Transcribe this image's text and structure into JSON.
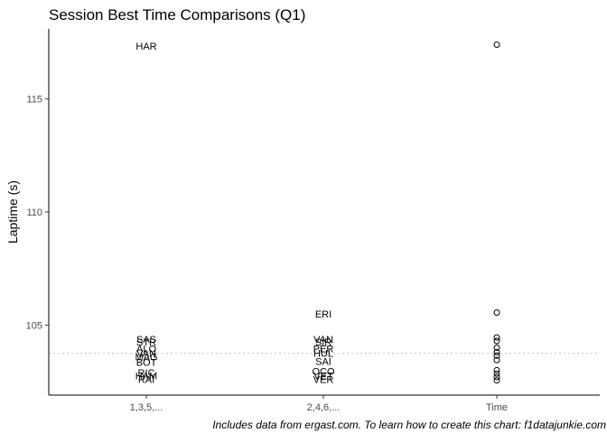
{
  "chart_data": {
    "type": "scatter",
    "title": "Session Best Time Comparisons (Q1)",
    "ylabel": "Laptime (s)",
    "caption": "Includes data from ergast.com. To learn how to create this chart: f1datajunkie.com",
    "categories": [
      "1,3,5,...",
      "2,4,6,...",
      "Time"
    ],
    "ylim": [
      101.9,
      118.1
    ],
    "yticks": [
      105,
      110,
      115
    ],
    "reference_line": 103.75,
    "grid": false,
    "label_columns": [
      {
        "category": "1,3,5,...",
        "points": [
          {
            "label": "HAR",
            "value": 117.35
          },
          {
            "label": "SAS",
            "value": 104.38
          },
          {
            "label": "STR",
            "value": 104.25
          },
          {
            "label": "ALO",
            "value": 103.95
          },
          {
            "label": "VAN",
            "value": 103.75
          },
          {
            "label": "MAG",
            "value": 103.6
          },
          {
            "label": "BOT",
            "value": 103.35
          },
          {
            "label": "RIC",
            "value": 102.9
          },
          {
            "label": "HAM",
            "value": 102.75
          },
          {
            "label": "RAI",
            "value": 102.6
          }
        ]
      },
      {
        "category": "2,4,6,...",
        "points": [
          {
            "label": "ERI",
            "value": 105.5
          },
          {
            "label": "VAN",
            "value": 104.38
          },
          {
            "label": "SIR",
            "value": 104.25
          },
          {
            "label": "PER",
            "value": 103.95
          },
          {
            "label": "HUL",
            "value": 103.75
          },
          {
            "label": "SAI",
            "value": 103.4
          },
          {
            "label": "OCO",
            "value": 102.95
          },
          {
            "label": "VET",
            "value": 102.75
          },
          {
            "label": "VER",
            "value": 102.6
          }
        ]
      }
    ],
    "time_points": [
      117.4,
      105.55,
      104.45,
      104.3,
      104.0,
      103.8,
      103.65,
      103.45,
      103.0,
      102.85,
      102.7,
      102.55
    ]
  }
}
